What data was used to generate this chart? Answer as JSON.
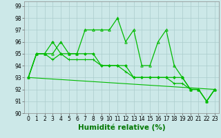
{
  "series1_x": [
    0,
    1,
    2,
    3,
    4,
    5,
    6,
    7,
    8,
    9,
    10,
    11,
    12,
    13,
    14,
    15,
    16,
    17,
    18,
    19,
    20,
    21,
    22,
    23
  ],
  "series1_y": [
    93,
    95,
    95,
    95,
    96,
    95,
    95,
    97,
    97,
    97,
    97,
    98,
    96,
    97,
    94,
    94,
    96,
    97,
    94,
    93,
    92,
    92,
    91,
    92
  ],
  "series2_x": [
    0,
    1,
    2,
    3,
    4,
    5,
    6,
    7,
    8,
    9,
    10,
    11,
    12,
    13,
    14,
    15,
    16,
    17,
    18,
    19,
    20,
    21,
    22,
    23
  ],
  "series2_y": [
    93,
    95,
    95,
    96,
    95,
    95,
    95,
    95,
    95,
    94,
    94,
    94,
    94,
    93,
    93,
    93,
    93,
    93,
    93,
    93,
    92,
    92,
    91,
    92
  ],
  "series3_x": [
    0,
    1,
    2,
    3,
    4,
    5,
    6,
    7,
    8,
    9,
    10,
    11,
    12,
    13,
    14,
    15,
    16,
    17,
    18,
    19,
    20,
    21,
    22,
    23
  ],
  "series3_y": [
    93,
    95,
    95,
    94.5,
    95,
    94.5,
    94.5,
    94.5,
    94.5,
    94,
    94,
    94,
    93.5,
    93,
    93,
    93,
    93,
    93,
    92.5,
    92.5,
    92,
    92,
    91,
    92
  ],
  "trend_x": [
    0,
    23
  ],
  "trend_y": [
    93,
    92
  ],
  "xlabel": "Humidité relative (%)",
  "xlim": [
    -0.5,
    23.5
  ],
  "ylim": [
    90,
    99.4
  ],
  "yticks": [
    90,
    91,
    92,
    93,
    94,
    95,
    96,
    97,
    98,
    99
  ],
  "xticks": [
    0,
    1,
    2,
    3,
    4,
    5,
    6,
    7,
    8,
    9,
    10,
    11,
    12,
    13,
    14,
    15,
    16,
    17,
    18,
    19,
    20,
    21,
    22,
    23
  ],
  "bg_color": "#cce8e8",
  "grid_color": "#aacccc",
  "line_color": "#00bb00",
  "tick_fontsize": 5.5,
  "xlabel_fontsize": 7.5
}
